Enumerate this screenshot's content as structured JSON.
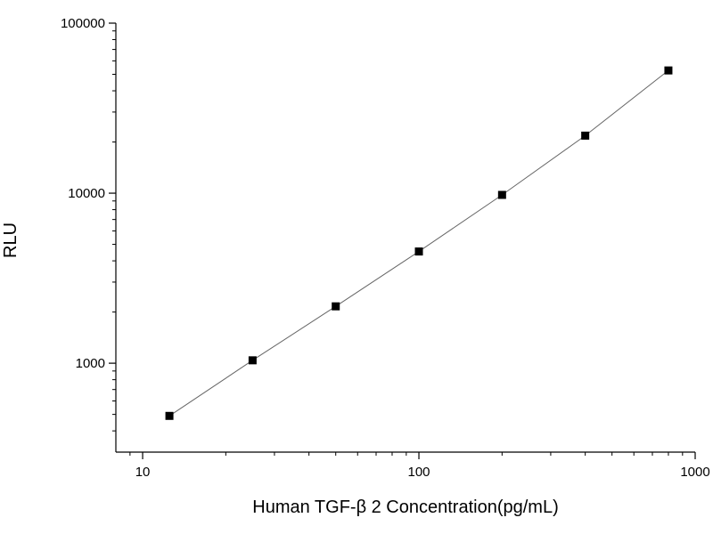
{
  "chart_data": {
    "type": "scatter",
    "title": "",
    "xlabel": "Human TGF-β 2 Concentration(pg/mL)",
    "ylabel": "RLU",
    "x_scale": "log",
    "y_scale": "log",
    "xlim": [
      8,
      1000
    ],
    "ylim": [
      300,
      100000
    ],
    "x_ticks": [
      {
        "value": 10,
        "label": "10"
      },
      {
        "value": 100,
        "label": "100"
      },
      {
        "value": 1000,
        "label": "1000"
      }
    ],
    "y_ticks": [
      {
        "value": 1000,
        "label": "1000"
      },
      {
        "value": 10000,
        "label": "10000"
      },
      {
        "value": 100000,
        "label": "100000"
      }
    ],
    "grid": false,
    "legend": "none",
    "marker_color": "#000000",
    "line_color": "#666666",
    "series": [
      {
        "x": [
          12.5,
          25,
          50,
          100,
          200,
          400,
          800
        ],
        "y": [
          490,
          1040,
          2160,
          4540,
          9770,
          21800,
          52700
        ]
      }
    ]
  }
}
